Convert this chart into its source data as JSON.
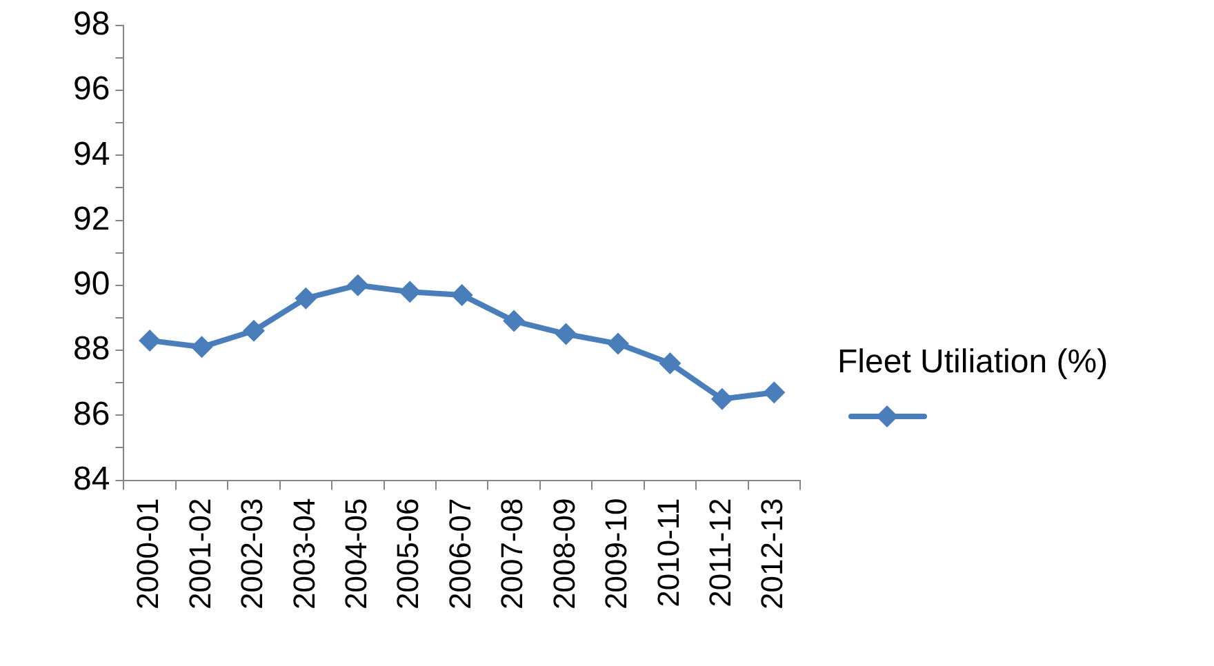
{
  "chart_data": {
    "type": "line",
    "categories": [
      "2000-01",
      "2001-02",
      "2002-03",
      "2003-04",
      "2004-05",
      "2005-06",
      "2006-07",
      "2007-08",
      "2008-09",
      "2009-10",
      "2010-11",
      "2011-12",
      "2012-13"
    ],
    "series": [
      {
        "name": "Fleet Utiliation (%)",
        "color": "#4a7ebb",
        "values": [
          88.3,
          88.1,
          88.6,
          89.6,
          90.0,
          89.8,
          89.7,
          88.9,
          88.5,
          88.2,
          87.6,
          86.5,
          86.7
        ]
      }
    ],
    "ylim": [
      84,
      98
    ],
    "yticks": [
      84,
      {
        "value": 85,
        "label": null
      },
      86,
      {
        "value": 87,
        "label": null
      },
      88,
      {
        "value": 89,
        "label": null
      },
      90,
      {
        "value": 91,
        "label": null
      },
      92,
      {
        "value": 93,
        "label": null
      },
      94,
      {
        "value": 95,
        "label": null
      },
      96,
      {
        "value": 97,
        "label": null
      },
      98
    ],
    "grid": false,
    "legend": "right",
    "marker": "diamond",
    "line_style": "solid"
  }
}
